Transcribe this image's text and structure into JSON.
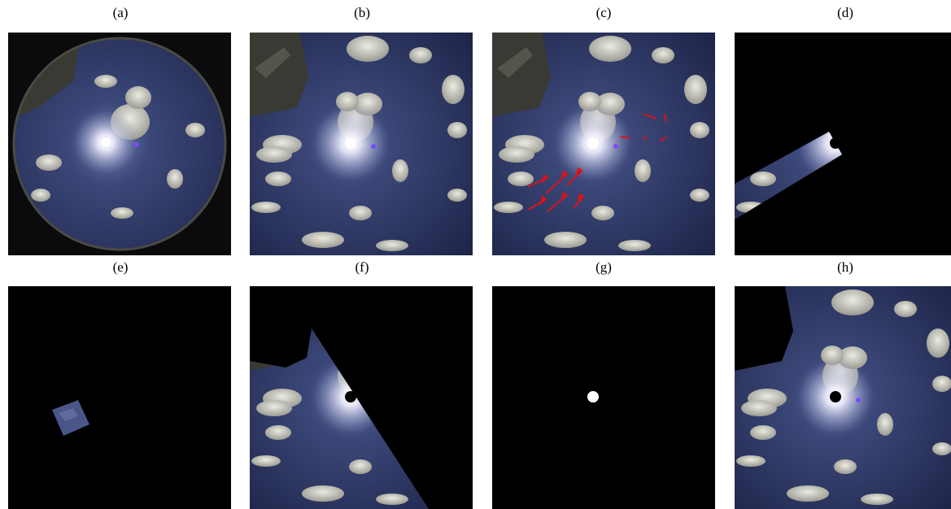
{
  "figure": {
    "panels": [
      {
        "id": "a",
        "label": "(a)",
        "content": "fisheye-sky"
      },
      {
        "id": "b",
        "label": "(b)",
        "content": "undistorted-sky"
      },
      {
        "id": "c",
        "label": "(c)",
        "content": "sky-with-red-motion-arrows"
      },
      {
        "id": "d",
        "label": "(d)",
        "content": "masked-diagonal-strip"
      },
      {
        "id": "e",
        "label": "(e)",
        "content": "small-rotated-patch"
      },
      {
        "id": "f",
        "label": "(f)",
        "content": "masked-half-sky"
      },
      {
        "id": "g",
        "label": "(g)",
        "content": "sun-mask"
      },
      {
        "id": "h",
        "label": "(h)",
        "content": "sky-with-sun-masked"
      }
    ],
    "colors": {
      "sky_dark": "#1c2346",
      "sky_mid": "#3a4676",
      "cloud": "#d8d6cc",
      "building": "#3a3a34",
      "arrow_red": "#d8141b",
      "sun_glow": "#ffffff",
      "mask_black": "#000000",
      "mask_white": "#ffffff"
    }
  }
}
